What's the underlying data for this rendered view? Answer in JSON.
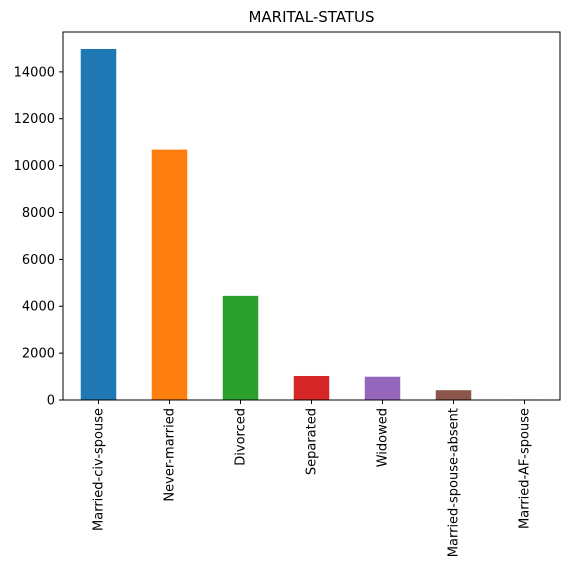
{
  "chart_data": {
    "type": "bar",
    "title": "MARITAL-STATUS",
    "xlabel": "",
    "ylabel": "",
    "categories": [
      "Married-civ-spouse",
      "Never-married",
      "Divorced",
      "Separated",
      "Widowed",
      "Married-spouse-absent",
      "Married-AF-spouse"
    ],
    "values": [
      14976,
      10683,
      4443,
      1025,
      993,
      418,
      23
    ],
    "colors": [
      "#1f77b4",
      "#ff7f0e",
      "#2ca02c",
      "#d62728",
      "#9467bd",
      "#8c564b",
      "#e377c2"
    ],
    "ylim": [
      0,
      15700
    ],
    "yticks": [
      0,
      2000,
      4000,
      6000,
      8000,
      10000,
      12000,
      14000
    ],
    "grid": false,
    "legend": "none"
  }
}
